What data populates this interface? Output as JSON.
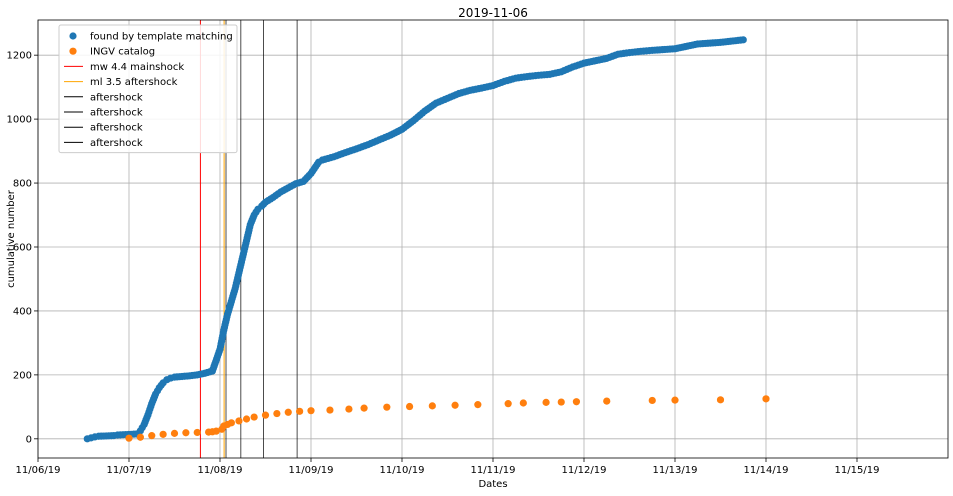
{
  "chart_data": {
    "type": "scatter",
    "title": "2019-11-06",
    "xlabel": "Dates",
    "ylabel": "cumulative number",
    "xlim": [
      "2019-11-06",
      "2019-11-16"
    ],
    "ylim": [
      -60,
      1310
    ],
    "x_ticks": [
      "11/06/19",
      "11/07/19",
      "11/08/19",
      "11/09/19",
      "11/10/19",
      "11/11/19",
      "11/12/19",
      "11/13/19",
      "11/14/19",
      "11/15/19"
    ],
    "y_ticks": [
      0,
      200,
      400,
      600,
      800,
      1000,
      1200
    ],
    "grid": true,
    "legend_position": "top-left",
    "series": [
      {
        "name": "found by template matching",
        "color": "#1f77b4",
        "x": [
          "2019-11-06T13:00",
          "2019-11-06T14:00",
          "2019-11-06T15:00",
          "2019-11-06T16:00",
          "2019-11-06T20:00",
          "2019-11-06T21:00",
          "2019-11-07T02:00",
          "2019-11-07T03:00",
          "2019-11-07T04:00",
          "2019-11-07T05:00",
          "2019-11-07T06:00",
          "2019-11-07T07:00",
          "2019-11-07T08:00",
          "2019-11-07T09:00",
          "2019-11-07T10:00",
          "2019-11-07T11:00",
          "2019-11-07T12:00",
          "2019-11-07T14:00",
          "2019-11-07T16:00",
          "2019-11-07T18:00",
          "2019-11-07T20:00",
          "2019-11-07T22:00",
          "2019-11-08T00:00",
          "2019-11-08T01:00",
          "2019-11-08T02:00",
          "2019-11-08T03:00",
          "2019-11-08T04:00",
          "2019-11-08T05:00",
          "2019-11-08T06:00",
          "2019-11-08T07:00",
          "2019-11-08T08:00",
          "2019-11-08T09:00",
          "2019-11-08T10:00",
          "2019-11-08T11:00",
          "2019-11-08T12:00",
          "2019-11-08T14:00",
          "2019-11-08T16:00",
          "2019-11-08T18:00",
          "2019-11-08T20:00",
          "2019-11-08T22:00",
          "2019-11-09T00:00",
          "2019-11-09T02:00",
          "2019-11-09T03:00",
          "2019-11-09T06:00",
          "2019-11-09T09:00",
          "2019-11-09T12:00",
          "2019-11-09T15:00",
          "2019-11-09T18:00",
          "2019-11-09T21:00",
          "2019-11-10T00:00",
          "2019-11-10T03:00",
          "2019-11-10T06:00",
          "2019-11-10T09:00",
          "2019-11-10T12:00",
          "2019-11-10T15:00",
          "2019-11-10T18:00",
          "2019-11-10T21:00",
          "2019-11-11T00:00",
          "2019-11-11T03:00",
          "2019-11-11T06:00",
          "2019-11-11T09:00",
          "2019-11-11T12:00",
          "2019-11-11T15:00",
          "2019-11-11T18:00",
          "2019-11-11T21:00",
          "2019-11-12T00:00",
          "2019-11-12T06:00",
          "2019-11-12T09:00",
          "2019-11-12T12:00",
          "2019-11-12T15:00",
          "2019-11-12T18:00",
          "2019-11-13T00:00",
          "2019-11-13T06:00",
          "2019-11-13T12:00",
          "2019-11-13T18:00"
        ],
        "y": [
          0,
          3,
          6,
          8,
          10,
          12,
          15,
          25,
          45,
          75,
          110,
          140,
          160,
          175,
          185,
          190,
          193,
          195,
          197,
          200,
          205,
          212,
          280,
          340,
          390,
          430,
          470,
          520,
          570,
          620,
          670,
          700,
          718,
          728,
          740,
          755,
          772,
          785,
          798,
          805,
          830,
          865,
          872,
          882,
          895,
          907,
          920,
          935,
          950,
          968,
          995,
          1025,
          1050,
          1065,
          1080,
          1090,
          1097,
          1105,
          1118,
          1128,
          1133,
          1137,
          1140,
          1148,
          1163,
          1175,
          1190,
          1203,
          1208,
          1212,
          1215,
          1220,
          1235,
          1240,
          1248
        ]
      },
      {
        "name": "INGV catalog",
        "color": "#ff7f0e",
        "x": [
          "2019-11-07T00:00",
          "2019-11-07T03:00",
          "2019-11-07T06:00",
          "2019-11-07T09:00",
          "2019-11-07T12:00",
          "2019-11-07T15:00",
          "2019-11-07T18:00",
          "2019-11-07T21:00",
          "2019-11-07T22:00",
          "2019-11-07T23:00",
          "2019-11-08T00:30",
          "2019-11-08T01:00",
          "2019-11-08T02:00",
          "2019-11-08T03:00",
          "2019-11-08T05:00",
          "2019-11-08T07:00",
          "2019-11-08T09:00",
          "2019-11-08T12:00",
          "2019-11-08T15:00",
          "2019-11-08T18:00",
          "2019-11-08T21:00",
          "2019-11-09T00:00",
          "2019-11-09T05:00",
          "2019-11-09T10:00",
          "2019-11-09T14:00",
          "2019-11-09T20:00",
          "2019-11-10T02:00",
          "2019-11-10T08:00",
          "2019-11-10T14:00",
          "2019-11-10T20:00",
          "2019-11-11T04:00",
          "2019-11-11T08:00",
          "2019-11-11T14:00",
          "2019-11-11T18:00",
          "2019-11-11T22:00",
          "2019-11-12T06:00",
          "2019-11-12T18:00",
          "2019-11-13T00:00",
          "2019-11-13T12:00",
          "2019-11-14T00:00"
        ],
        "y": [
          2,
          5,
          10,
          14,
          17,
          19,
          20,
          21,
          22,
          24,
          30,
          40,
          45,
          50,
          56,
          62,
          68,
          74,
          79,
          83,
          86,
          88,
          90,
          93,
          96,
          99,
          101,
          103,
          105,
          107,
          110,
          112,
          114,
          115,
          116,
          118,
          120,
          121,
          122,
          125
        ]
      }
    ],
    "vlines": [
      {
        "name": "mw 4.4 mainshock",
        "x": "2019-11-07T18:50",
        "color": "#ff0000"
      },
      {
        "name": "ml 3.5 aftershock",
        "x": "2019-11-08T01:05",
        "color": "#ffa500"
      },
      {
        "name": "aftershock",
        "x": "2019-11-08T01:35",
        "color": "#000000"
      },
      {
        "name": "aftershock",
        "x": "2019-11-08T05:30",
        "color": "#000000"
      },
      {
        "name": "aftershock",
        "x": "2019-11-08T11:30",
        "color": "#000000"
      },
      {
        "name": "aftershock",
        "x": "2019-11-08T20:20",
        "color": "#000000"
      }
    ]
  }
}
